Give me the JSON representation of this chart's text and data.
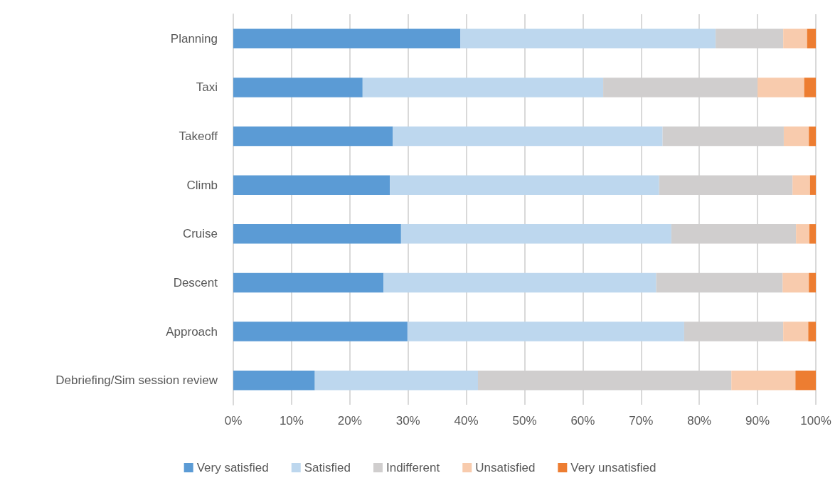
{
  "chart_data": {
    "type": "bar",
    "orientation": "horizontal",
    "stacked": true,
    "categories": [
      "Planning",
      "Taxi",
      "Takeoff",
      "Climb",
      "Cruise",
      "Descent",
      "Approach",
      "Debriefing/Sim session review"
    ],
    "series": [
      {
        "name": "Very satisfied",
        "color": "#5b9bd5",
        "values": [
          39.0,
          22.2,
          27.4,
          26.9,
          28.8,
          25.8,
          29.9,
          14.0
        ]
      },
      {
        "name": "Satisfied",
        "color": "#bdd7ee",
        "values": [
          43.8,
          41.3,
          46.3,
          46.2,
          46.4,
          46.8,
          47.5,
          28.0
        ]
      },
      {
        "name": "Indifferent",
        "color": "#d0cece",
        "values": [
          11.6,
          26.5,
          20.8,
          22.9,
          21.4,
          21.7,
          17.0,
          43.5
        ]
      },
      {
        "name": "Unsatisfied",
        "color": "#f8cbad",
        "values": [
          4.1,
          8.0,
          4.3,
          3.0,
          2.3,
          4.5,
          4.3,
          11.0
        ]
      },
      {
        "name": "Very unsatisfied",
        "color": "#ed7d31",
        "values": [
          1.5,
          2.0,
          1.2,
          1.0,
          1.1,
          1.2,
          1.3,
          3.5
        ]
      }
    ],
    "xlim": [
      0,
      100
    ],
    "xticks": [
      {
        "value": 0,
        "label": "0%"
      },
      {
        "value": 10,
        "label": "10%"
      },
      {
        "value": 20,
        "label": "20%"
      },
      {
        "value": 30,
        "label": "30%"
      },
      {
        "value": 40,
        "label": "40%"
      },
      {
        "value": 50,
        "label": "50%"
      },
      {
        "value": 60,
        "label": "60%"
      },
      {
        "value": 70,
        "label": "70%"
      },
      {
        "value": 80,
        "label": "80%"
      },
      {
        "value": 90,
        "label": "90%"
      },
      {
        "value": 100,
        "label": "100%"
      }
    ],
    "grid": "x",
    "legend": "bottom"
  }
}
